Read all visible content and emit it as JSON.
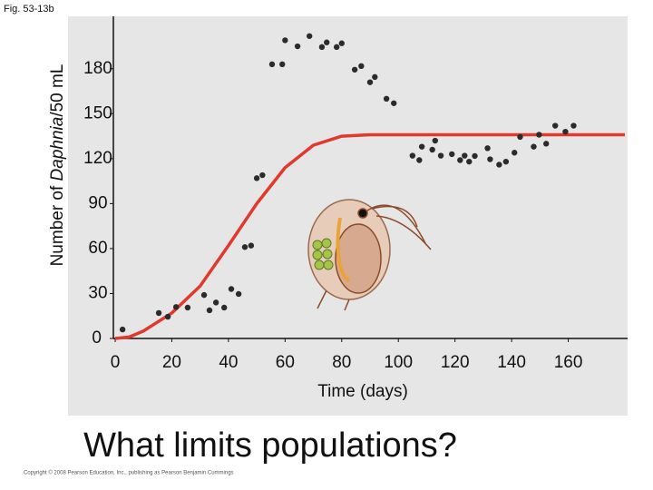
{
  "chart_data": {
    "type": "scatter",
    "figure_label": "Fig. 53-13b",
    "ylabel": [
      "Number of ",
      "Daphnia",
      "/50 mL"
    ],
    "xlabel": "Time (days)",
    "title": "What limits populations?",
    "footer": "Copyright © 2008 Pearson Education, Inc., publishing as Pearson Benjamin Cummings",
    "xlim": [
      0,
      180
    ],
    "ylim": [
      0,
      215
    ],
    "xticks": [
      0,
      20,
      40,
      60,
      80,
      100,
      120,
      140,
      160
    ],
    "yticks": [
      0,
      30,
      60,
      90,
      120,
      150,
      180
    ],
    "points": {
      "color": "#2b2b2b",
      "x": [
        2.6,
        15.4,
        18.6,
        21.5,
        25.6,
        31.4,
        33.3,
        35.6,
        38.5,
        41,
        43.6,
        45.8,
        48,
        50,
        52,
        55.4,
        59,
        60,
        64.4,
        68.6,
        73,
        74.7,
        78.2,
        80,
        84.6,
        86.9,
        90,
        91.7,
        95.8,
        98.4,
        105,
        107.4,
        108.3,
        112,
        113,
        115,
        118.9,
        121.8,
        123.4,
        125,
        127,
        131.5,
        132.4,
        135.6,
        138,
        141,
        143,
        147.8,
        149.7,
        152.2,
        155.4,
        159,
        161.9
      ],
      "values": [
        6,
        17,
        14.5,
        21,
        20.6,
        29,
        18.8,
        24,
        20.6,
        33,
        29.7,
        61,
        62,
        107,
        109,
        183,
        183,
        199,
        195,
        201.8,
        194.5,
        197.6,
        194.5,
        197,
        179.4,
        181.8,
        171,
        174.5,
        160,
        157,
        122,
        119,
        128,
        126,
        132,
        122,
        123,
        119,
        122,
        118,
        121.8,
        127,
        119.6,
        116,
        118,
        124,
        134.5,
        128,
        136,
        130,
        142,
        138,
        142
      ]
    },
    "curve": {
      "color": "#e03a2f",
      "x": [
        0,
        5,
        10,
        20,
        30,
        40,
        50,
        60,
        70,
        80,
        90,
        100,
        120,
        140,
        160,
        180
      ],
      "values": [
        0,
        1,
        5,
        17,
        35,
        62,
        90,
        114,
        129,
        135,
        136,
        136,
        136,
        136,
        136,
        136
      ]
    }
  }
}
